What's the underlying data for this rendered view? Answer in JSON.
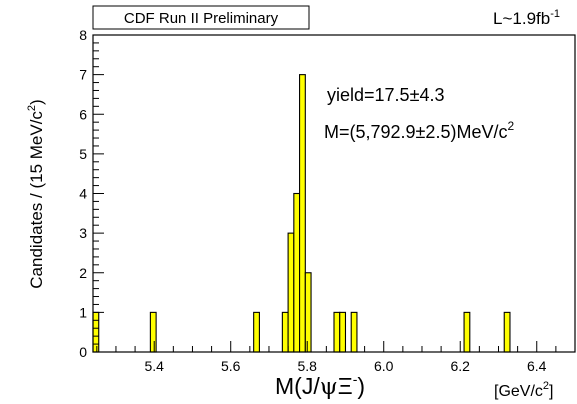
{
  "header": {
    "experiment": "CDF Run II Preliminary",
    "luminosity_prefix": "L~1.9fb",
    "luminosity_sup": "-1"
  },
  "annotations": {
    "yield": "yield=17.5±4.3",
    "mass_main": "M=(5,792.9±2.5)MeV/c",
    "mass_sup": "2"
  },
  "axes": {
    "ylabel_main": "Candidates / (15 MeV/c",
    "ylabel_sup": "2",
    "ylabel_close": ")",
    "xlabel_prefix": "M(J/",
    "xlabel_psi": "ψ",
    "xlabel_xi": "Ξ",
    "xlabel_sup": "-",
    "xlabel_close": ")",
    "xunit_prefix": "[GeV/c",
    "xunit_sup": "2",
    "xunit_close": "]"
  },
  "colors": {
    "fill": "#ffff00",
    "line": "#000000"
  },
  "chart_data": {
    "type": "bar",
    "title": "CDF Run II Preliminary",
    "xlabel": "M(J/ψΞ-) [GeV/c2]",
    "ylabel": "Candidates / (15 MeV/c2)",
    "xlim": [
      5.24,
      6.5
    ],
    "ylim": [
      0,
      8
    ],
    "bin_width": 0.015,
    "xticks": [
      5.4,
      5.6,
      5.8,
      6.0,
      6.2,
      6.4
    ],
    "xtick_labels": [
      "5.4",
      "5.6",
      "5.8",
      "6.0",
      "6.2",
      "6.4"
    ],
    "yticks": [
      0,
      1,
      2,
      3,
      4,
      5,
      6,
      7,
      8
    ],
    "ytick_labels": [
      "0",
      "1",
      "2",
      "3",
      "4",
      "5",
      "6",
      "7",
      "8"
    ],
    "bins": [
      {
        "x": 5.24,
        "count": 1
      },
      {
        "x": 5.39,
        "count": 1
      },
      {
        "x": 5.66,
        "count": 1
      },
      {
        "x": 5.735,
        "count": 1
      },
      {
        "x": 5.75,
        "count": 3
      },
      {
        "x": 5.765,
        "count": 4
      },
      {
        "x": 5.78,
        "count": 7
      },
      {
        "x": 5.795,
        "count": 2
      },
      {
        "x": 5.87,
        "count": 1
      },
      {
        "x": 5.885,
        "count": 1
      },
      {
        "x": 5.915,
        "count": 1
      },
      {
        "x": 6.21,
        "count": 1
      },
      {
        "x": 6.315,
        "count": 1
      }
    ]
  }
}
